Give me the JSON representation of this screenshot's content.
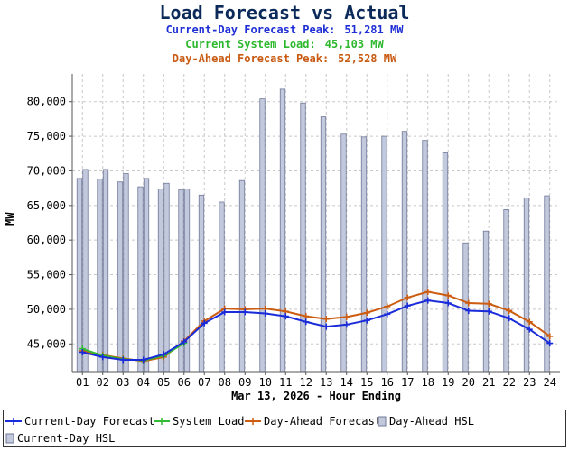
{
  "header": {
    "title": "Load Forecast vs Actual",
    "current_day_peak_label": "Current-Day Forecast Peak:",
    "current_day_peak_value": "51,281 MW",
    "system_load_label": "Current System Load:",
    "system_load_value": "45,103 MW",
    "day_ahead_peak_label": "Day-Ahead Forecast Peak:",
    "day_ahead_peak_value": "52,528 MW"
  },
  "chart_data": {
    "type": "bar",
    "xlabel": "Mar 13, 2026 - Hour Ending",
    "ylabel": "MW",
    "ylim": [
      41000,
      84000
    ],
    "yticks": [
      45000,
      50000,
      55000,
      60000,
      65000,
      70000,
      75000,
      80000
    ],
    "ytick_labels": [
      "45,000",
      "50,000",
      "55,000",
      "60,000",
      "65,000",
      "70,000",
      "75,000",
      "80,000"
    ],
    "categories": [
      "01",
      "02",
      "03",
      "04",
      "05",
      "06",
      "07",
      "08",
      "09",
      "10",
      "11",
      "12",
      "13",
      "14",
      "15",
      "16",
      "17",
      "18",
      "19",
      "20",
      "21",
      "22",
      "23",
      "24"
    ],
    "grid": true,
    "legend_position": "bottom",
    "colors": {
      "current_day_forecast": "#1a2bd9",
      "system_load": "#33bb33",
      "day_ahead_forecast": "#cc5c10",
      "hsl_fill": "#c3c9dd",
      "hsl_edge": "#6f7897"
    },
    "series": [
      {
        "name": "Day-Ahead HSL",
        "kind": "bar",
        "values": [
          68900,
          68800,
          68400,
          67700,
          67400,
          67300,
          66500,
          65500,
          68600,
          80400,
          81800,
          79800,
          77800,
          75300,
          74900,
          75000,
          75700,
          74400,
          72600,
          59600,
          61300,
          64400,
          66100,
          66400
        ]
      },
      {
        "name": "Current-Day HSL",
        "kind": "bar",
        "values": [
          70200,
          70200,
          69600,
          68900,
          68200,
          67400,
          null,
          null,
          null,
          null,
          null,
          null,
          null,
          null,
          null,
          null,
          null,
          null,
          null,
          null,
          null,
          null,
          null,
          null
        ]
      },
      {
        "name": "Current-Day Forecast",
        "kind": "line",
        "values": [
          43800,
          43100,
          42700,
          42700,
          43500,
          45300,
          48000,
          49600,
          49600,
          49400,
          49000,
          48200,
          47500,
          47800,
          48400,
          49300,
          50500,
          51281,
          50900,
          49800,
          49700,
          48700,
          47100,
          45100
        ]
      },
      {
        "name": "System Load",
        "kind": "line",
        "values": [
          44300,
          43300,
          42800,
          42600,
          43300,
          45103,
          null,
          null,
          null,
          null,
          null,
          null,
          null,
          null,
          null,
          null,
          null,
          null,
          null,
          null,
          null,
          null,
          null,
          null
        ]
      },
      {
        "name": "Day-Ahead Forecast",
        "kind": "line",
        "values": [
          44000,
          43400,
          42900,
          42500,
          43100,
          45400,
          48300,
          50100,
          50000,
          50100,
          49700,
          49000,
          48600,
          48900,
          49500,
          50400,
          51700,
          52528,
          52000,
          50900,
          50800,
          49800,
          48200,
          46100
        ]
      }
    ]
  }
}
